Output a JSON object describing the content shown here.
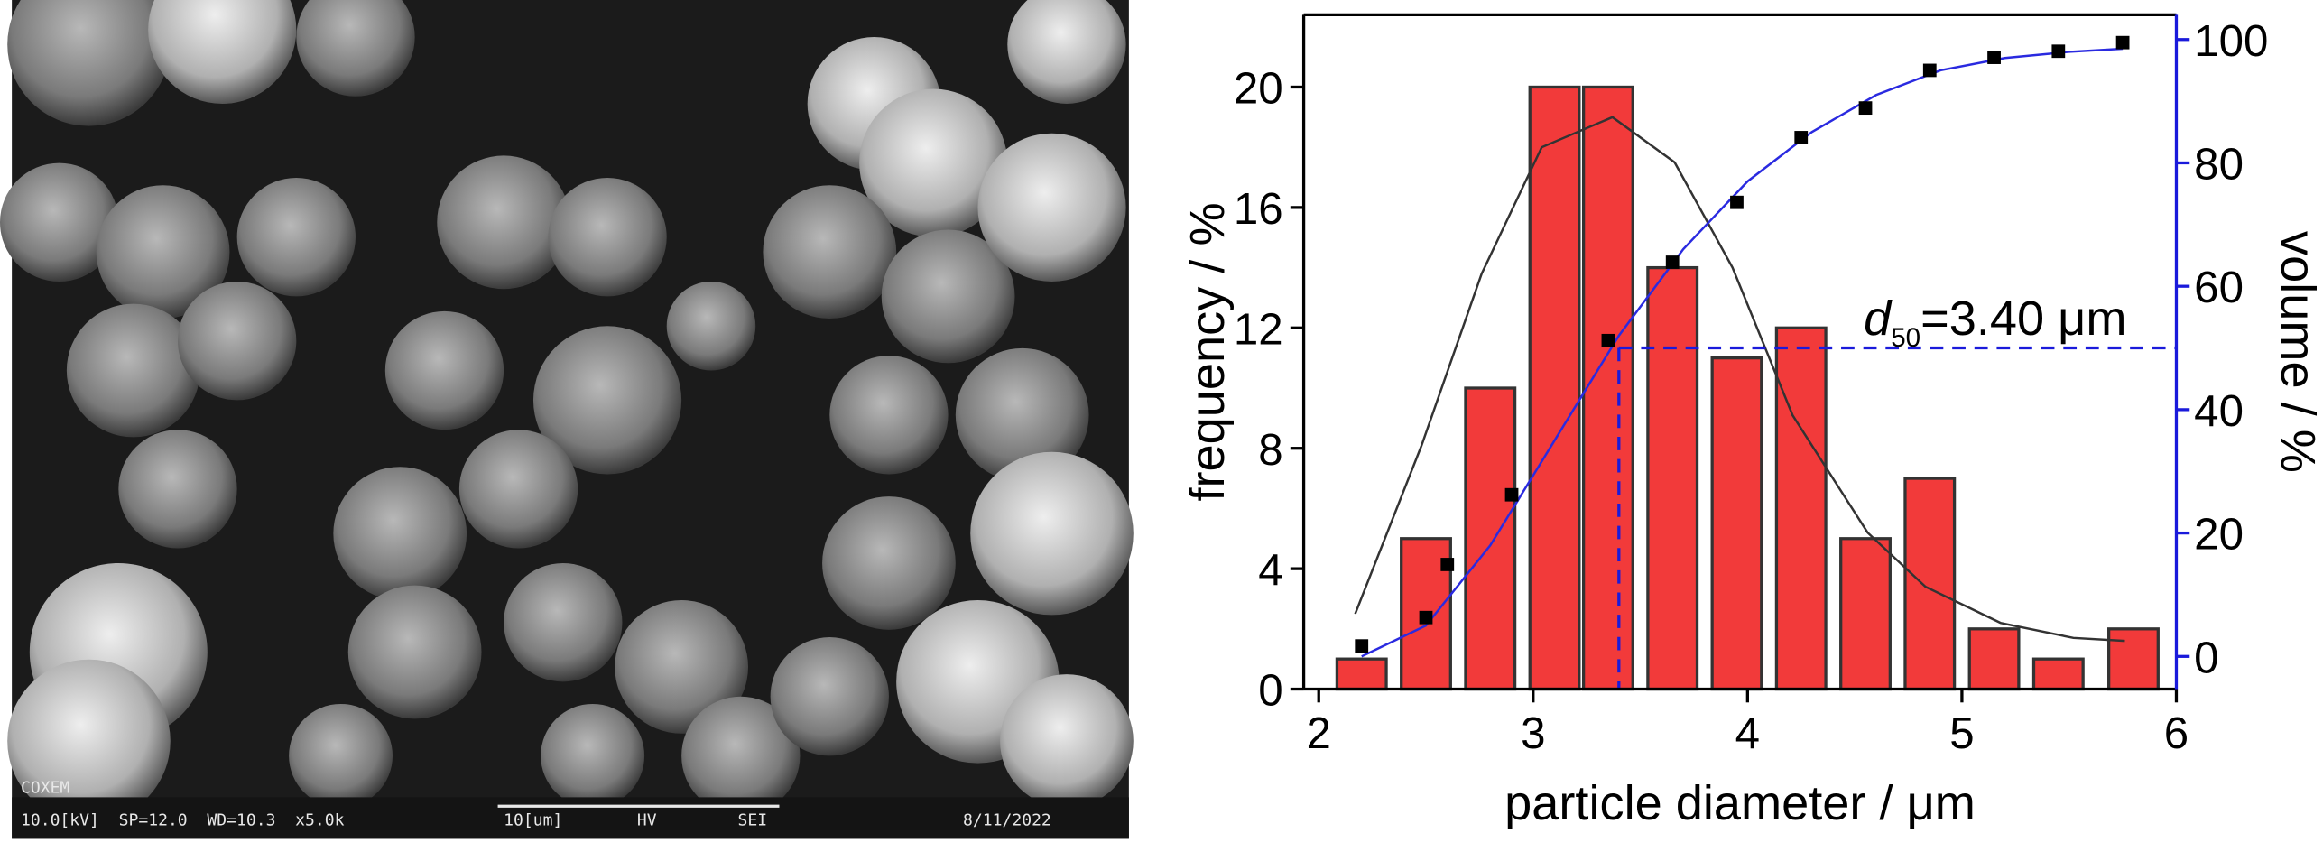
{
  "sem_image": {
    "brand": "COXEM",
    "info": "10.0[kV]  SP=12.0  WD=10.3  x5.0k",
    "scale_bar": "10[um]",
    "mode_1": "HV",
    "mode_2": "SEI",
    "date": "8/11/2022"
  },
  "chart_data": {
    "type": "bar",
    "x": [
      2.2,
      2.5,
      2.8,
      3.1,
      3.35,
      3.65,
      3.95,
      4.25,
      4.55,
      4.85,
      5.15,
      5.45,
      5.8
    ],
    "values": [
      1,
      5,
      10,
      20,
      20,
      14,
      11,
      12,
      5,
      7,
      2,
      1,
      2
    ],
    "color": "#f23a3a",
    "xlabel": "particle diameter / μm",
    "ylabel": "frequency / %",
    "y2label": "volume / %",
    "xlim": [
      1.93,
      6
    ],
    "ylim": [
      0,
      22.4
    ],
    "y2lim": [
      -5.3,
      104
    ],
    "xticks": [
      2,
      3,
      4,
      5,
      6
    ],
    "yticks": [
      0,
      4,
      8,
      12,
      16,
      20
    ],
    "y2ticks": [
      0,
      20,
      40,
      60,
      80,
      100
    ],
    "y2color": "#1a1adb",
    "overlays": [
      {
        "type": "line",
        "color": "#333333",
        "x": [
          2.17,
          2.48,
          2.76,
          3.04,
          3.37,
          3.66,
          3.93,
          4.21,
          4.56,
          4.83,
          5.18,
          5.52,
          5.76
        ],
        "values": [
          2.5,
          8.1,
          13.8,
          18,
          19,
          17.5,
          14,
          9.1,
          5.2,
          3.4,
          2.2,
          1.7,
          1.6
        ]
      },
      {
        "type": "line",
        "axis": "y2",
        "color": "#2a2ae0",
        "x": [
          2.2,
          2.5,
          2.8,
          3.1,
          3.4,
          3.7,
          4.0,
          4.3,
          4.6,
          4.9,
          5.2,
          5.5,
          5.75
        ],
        "values": [
          0,
          5,
          18,
          35,
          52,
          66,
          77,
          85,
          91,
          95,
          97,
          98,
          98.5
        ]
      },
      {
        "type": "scatter",
        "axis": "y2",
        "color": "#000000",
        "x": [
          2.2,
          2.5,
          2.6,
          2.9,
          3.35,
          3.65,
          3.95,
          4.25,
          4.55,
          4.85,
          5.15,
          5.45,
          5.75
        ],
        "values": [
          1.7,
          6.3,
          14.9,
          26.2,
          51.2,
          63.9,
          73.6,
          84.1,
          88.9,
          95,
          97.1,
          98.1,
          99.5
        ]
      }
    ],
    "annotation": {
      "symbol": "d",
      "subscript": "50",
      "text": "=3.40 μm",
      "x": 3.4,
      "y2": 50
    }
  }
}
